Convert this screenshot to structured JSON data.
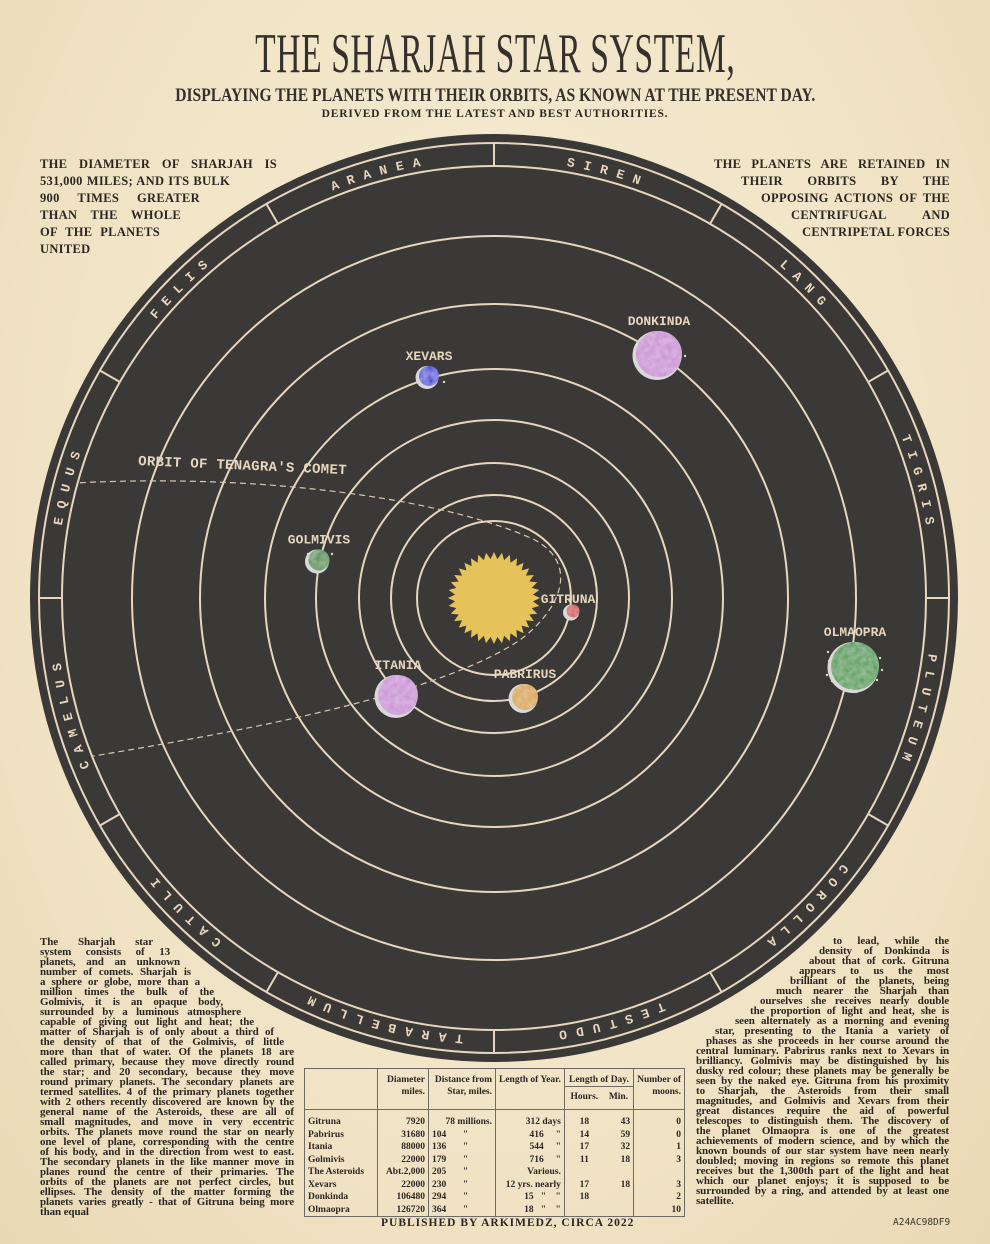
{
  "header": {
    "title": "THE SHARJAH STAR SYSTEM,",
    "subtitle": "DISPLAYING THE PLANETS WITH THEIR ORBITS, AS KNOWN AT THE PRESENT DAY.",
    "derived": "DERIVED FROM THE LATEST AND BEST AUTHORITIES."
  },
  "top_left_note": [
    "THE DIAMETER OF SHARJAH IS",
    "531,000 MILES; AND ITS BULK",
    "900 TIMES GREATER",
    "THAN THE WHOLE",
    "OF THE PLANETS",
    "UNITED"
  ],
  "top_right_note": [
    "THE PLANETS ARE RETAINED IN",
    "THEIR ORBITS BY THE",
    "OPPOSING ACTIONS OF THE",
    "CENTRIFUGAL AND",
    "CENTRIPETAL FORCES"
  ],
  "left_text": [
    "The Sharjah star",
    "system consists of 13",
    "planets, and an unknown",
    "number of comets. Sharjah is",
    "a sphere or globe, more than a",
    "million times the bulk of the",
    "Golmivis, it is an opaque body,",
    "surrounded by a luminous atmosphere",
    "capable of giving out light and heat; the",
    "matter of Sharjah is of only about a third of",
    "the density of that of the Golmivis, of little",
    "more than that of water. Of the planets 18 are",
    "called primary, because they move directly round",
    "the star; and 20 secondary, because they move",
    "round primary planets. The secondary planets are",
    "termed satellites. 4 of the primary planets together",
    "with 2 others recently discovered are known by the",
    "general name of the Asteroids, these are all of",
    "small magnitudes, and move in very eccentric",
    "orbits. The planets move round the star on nearly",
    "one level of plane, corresponding with the centre",
    "of his body, and in the direction from west to east.",
    "The secondary planets in the like manner move in",
    "planes round the centre of their primaries. The",
    "orbits of the planets are not perfect circles, but",
    "ellipses. The density of the matter forming the",
    "planets varies greatly - that of Gitruna being more",
    "than equal"
  ],
  "right_text": [
    "to lead, while the",
    "density of Donkinda is",
    "about that of cork. Gitruna",
    "appears to us the most",
    "brilliant of the planets, being",
    "much nearer the Sharjah than",
    "ourselves she receives nearly double",
    "the proportion of light and heat, she is",
    "seen alternately as a morning and evening",
    "star, presenting to the Itania a variety of",
    "phases as she proceeds in her course around the",
    "central luminary. Pabrirus ranks next to Xevars in",
    "brilliancy. Golmivis may be distinguished by his",
    "dusky red colour; these planets may be generally be",
    "seen by the naked eye. Gitruna from his proximity",
    "to Sharjah, the Asteroids from their small",
    "magnitudes, and Golmivis and Xevars from their",
    "great distances require the aid of powerful",
    "telescopes to distinguish them. The discovery of",
    "the planet Olmaopra is one of the greatest",
    "achievements of modern science, and by which the",
    "known bounds of our star system have neen nearly",
    "doubled; moving in regions so remote this planet",
    "receives but the 1,300th part of the light and heat",
    "which our planet enjoys; it is supposed to be",
    "surrounded by a ring, and attended by at least one",
    "satellite."
  ],
  "zodiac": [
    "ARANEA",
    "SIREN",
    "LANG",
    "TIGRIS",
    "PLUTEUM",
    "COROLLA",
    "TESTUDO",
    "TARABELLUM",
    "CATULI",
    "CAMELUS",
    "EQUUS",
    "FELIS"
  ],
  "comet_label": "ORBIT OF TENAGRA'S COMET",
  "planets": [
    {
      "name": "GITRUNA",
      "color": "#d63b3e"
    },
    {
      "name": "PABRIRUS",
      "color": "#d9a032"
    },
    {
      "name": "ITANIA",
      "color": "#c98ad4"
    },
    {
      "name": "GOLMIVIS",
      "color": "#3c8a3e"
    },
    {
      "name": "XEVARS",
      "color": "#3b3fd6"
    },
    {
      "name": "DONKINDA",
      "color": "#c98ad4"
    },
    {
      "name": "OLMAOPRA",
      "color": "#3c993f"
    }
  ],
  "colors": {
    "disc": "#3b3937",
    "lines": "#e6d6bd",
    "sun": "#e6c35a",
    "paper": "#f1e4c6"
  },
  "table": {
    "headers": {
      "diameter": "Diameter\nmiles.",
      "distance": "Distance from\nStar, miles.",
      "year": "Length of Year.",
      "day": "Length of Day.",
      "hours": "Hours.",
      "min": "Min.",
      "moons": "Number of\nmoons."
    },
    "rows": [
      [
        "Gitruna",
        "7920",
        "78 millions.",
        "312 days",
        "18",
        "43",
        "0"
      ],
      [
        "Pabrirus",
        "31680",
        "104       \"",
        "416     \"",
        "14",
        "59",
        "0"
      ],
      [
        "Itania",
        "88000",
        "136       \"",
        "544     \"",
        "17",
        "32",
        "1"
      ],
      [
        "Golmivis",
        "22000",
        "179       \"",
        "716     \"",
        "11",
        "18",
        "3"
      ],
      [
        "The Asteroids",
        "Abt.2,000",
        "205       \"",
        "Various.",
        "",
        "",
        ""
      ],
      [
        "Xevars",
        "22000",
        "230       \"",
        "12 yrs. nearly",
        "17",
        "18",
        "3"
      ],
      [
        "Donkinda",
        "106480",
        "294       \"",
        "15   \"    \"",
        "18",
        "",
        "2"
      ],
      [
        "Olmaopra",
        "126720",
        "364       \"",
        "18   \"    \"",
        "",
        "",
        "10"
      ]
    ]
  },
  "footer": {
    "published": "PUBLISHED BY ARKIMEDZ, CIRCA 2022",
    "code": "A24AC98DF9"
  }
}
